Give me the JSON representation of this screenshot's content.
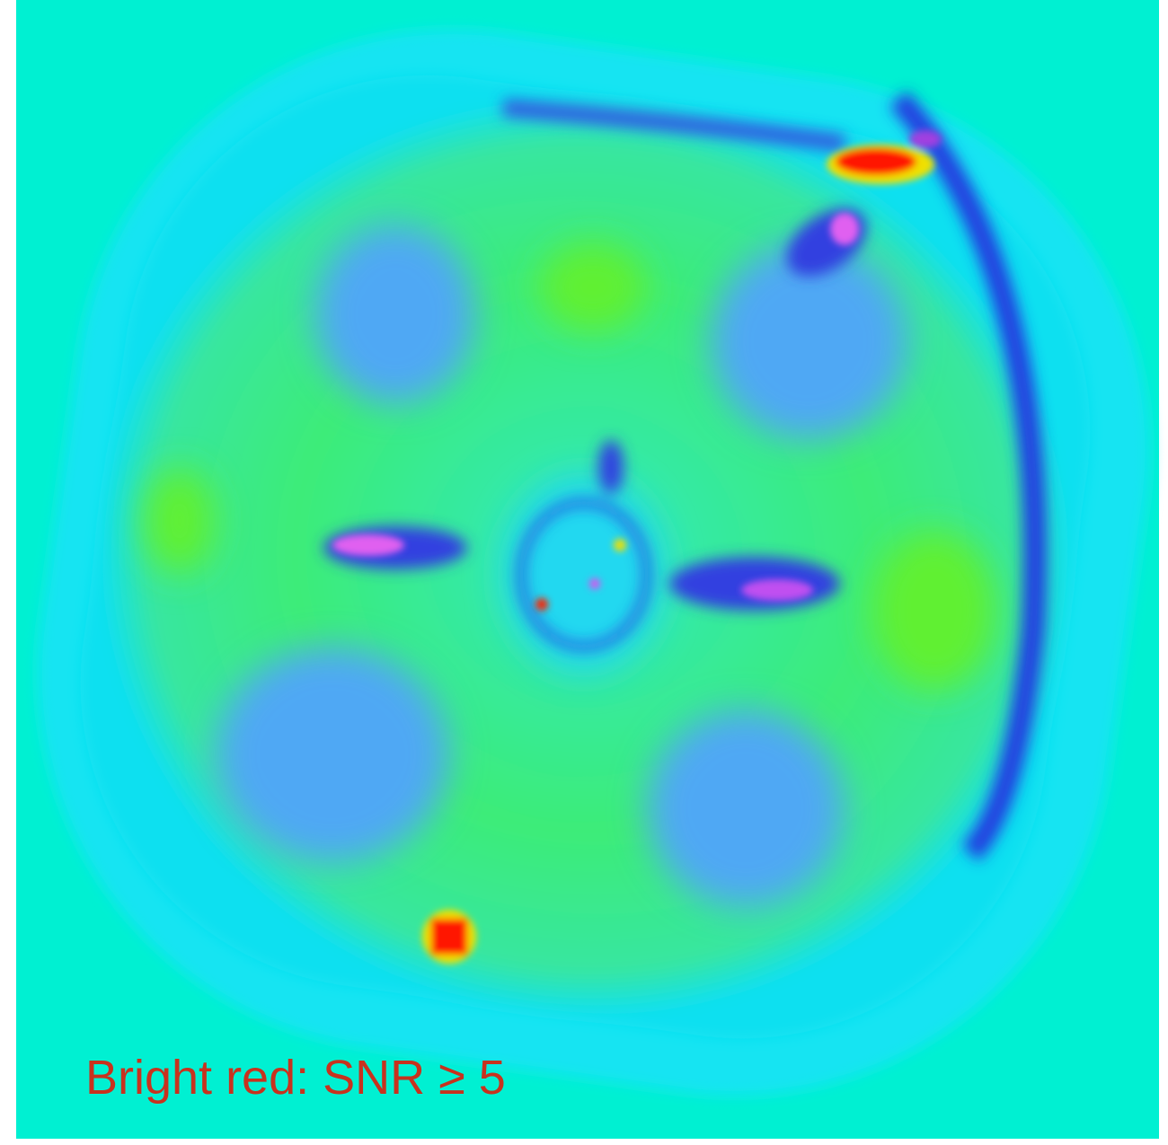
{
  "caption": "Bright red: SNR ≥ 5"
}
